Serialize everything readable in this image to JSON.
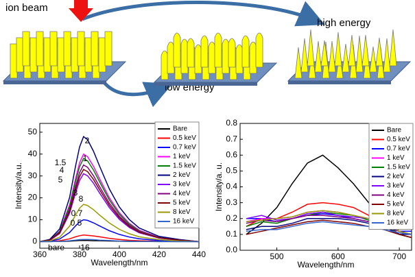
{
  "diagram": {
    "labels": [
      "ion beam",
      "high energy",
      "low energy"
    ]
  },
  "chart_data": [
    {
      "type": "line",
      "xlabel": "Wavelength/nm",
      "ylabel": "Intensity/a.u.",
      "xlim": [
        360,
        440
      ],
      "xticks": [
        360,
        380,
        400,
        420,
        440
      ],
      "ylim": [
        -3,
        54
      ],
      "yticks": [
        0,
        10,
        20,
        30,
        40,
        50
      ],
      "annotations": [
        "2",
        "1.5",
        "1",
        "4",
        "5",
        "3",
        "8",
        "0.7",
        "0.5",
        "bare",
        "16"
      ],
      "x": [
        360,
        365,
        370,
        375,
        378,
        380,
        382,
        384,
        387,
        390,
        395,
        400,
        405,
        410,
        420,
        430,
        440
      ],
      "series": [
        {
          "name": "Bare",
          "color": "#000000",
          "values": [
            0,
            0,
            0.1,
            0.2,
            0.4,
            0.5,
            0.5,
            0.5,
            0.4,
            0.4,
            0.3,
            0.2,
            0.1,
            0.1,
            0,
            0,
            0
          ]
        },
        {
          "name": "0.5 keV",
          "color": "#ff0000",
          "values": [
            0,
            0.1,
            0.4,
            1.3,
            2.2,
            2.7,
            3,
            2.9,
            2.6,
            2.2,
            1.5,
            1,
            0.6,
            0.4,
            0.2,
            0.1,
            0
          ]
        },
        {
          "name": "0.7 keV",
          "color": "#0000ff",
          "values": [
            0,
            0.2,
            1.2,
            4.2,
            7.2,
            9,
            10,
            9.7,
            8.6,
            7.2,
            5,
            3.3,
            2.1,
            1.3,
            0.5,
            0.2,
            0
          ]
        },
        {
          "name": "1 keV",
          "color": "#ff00ff",
          "values": [
            0,
            0.8,
            4.8,
            16.8,
            28.8,
            36,
            40,
            38.8,
            34.4,
            28.8,
            20,
            13.2,
            8.4,
            5.2,
            2,
            0.8,
            0
          ]
        },
        {
          "name": "1.5 keV",
          "color": "#008000",
          "values": [
            0,
            0.8,
            4.6,
            16,
            27.4,
            34.2,
            38,
            36.9,
            32.7,
            27.4,
            19,
            12.5,
            8,
            4.9,
            1.9,
            0.8,
            0
          ]
        },
        {
          "name": "2 keV",
          "color": "#000080",
          "values": [
            0,
            1,
            5.8,
            20.2,
            34.6,
            43.2,
            48,
            46.6,
            41.3,
            34.6,
            24,
            15.8,
            10.1,
            6.2,
            2.4,
            1,
            0
          ]
        },
        {
          "name": "3 keV",
          "color": "#8000ff",
          "values": [
            0,
            0.6,
            3.7,
            13,
            22.3,
            27.9,
            31,
            30.1,
            26.7,
            22.3,
            15.5,
            10.2,
            6.5,
            4,
            1.6,
            0.6,
            0
          ]
        },
        {
          "name": "4 keV",
          "color": "#800080",
          "values": [
            0,
            0.7,
            4.2,
            14.7,
            25.2,
            31.5,
            35,
            34,
            30.1,
            25.2,
            17.5,
            11.6,
            7.4,
            4.6,
            1.8,
            0.7,
            0
          ]
        },
        {
          "name": "5 keV",
          "color": "#800000",
          "values": [
            0,
            0.7,
            4,
            13.9,
            23.8,
            29.7,
            33,
            32,
            28.4,
            23.8,
            16.5,
            10.9,
            6.9,
            4.3,
            1.7,
            0.7,
            0
          ]
        },
        {
          "name": "8 keV",
          "color": "#999900",
          "values": [
            0,
            0.3,
            2,
            7.1,
            12.2,
            15.3,
            17,
            16.5,
            14.6,
            12.2,
            8.5,
            5.6,
            3.6,
            2.2,
            0.9,
            0.3,
            0
          ]
        },
        {
          "name": "16 keV",
          "color": "#3366cc",
          "values": [
            0,
            0,
            0.1,
            0.4,
            0.7,
            0.9,
            1,
            1,
            0.9,
            0.7,
            0.5,
            0.3,
            0.2,
            0.1,
            0.1,
            0,
            0
          ]
        }
      ]
    },
    {
      "type": "line",
      "xlabel": "Wavelength/nm",
      "ylabel": "Intensity/a. u.",
      "xlim": [
        440,
        720
      ],
      "xticks": [
        500,
        600,
        700
      ],
      "ylim": [
        0,
        0.8
      ],
      "yticks": [
        {
          "value": 0,
          "label": "0.0"
        },
        0.1,
        0.2,
        0.3,
        0.4,
        0.5,
        0.6,
        0.7,
        0.8
      ],
      "x": [
        450,
        475,
        500,
        525,
        550,
        575,
        600,
        625,
        650,
        675,
        700,
        720
      ],
      "series": [
        {
          "name": "Bare",
          "color": "#000000",
          "values": [
            0.1,
            0.17,
            0.27,
            0.42,
            0.55,
            0.6,
            0.52,
            0.42,
            0.3,
            0.2,
            0.12,
            0.1
          ]
        },
        {
          "name": "0.5 keV",
          "color": "#ff0000",
          "values": [
            0.15,
            0.2,
            0.2,
            0.24,
            0.29,
            0.3,
            0.29,
            0.27,
            0.22,
            0.18,
            0.1,
            0.08
          ]
        },
        {
          "name": "0.7 keV",
          "color": "#0000ff",
          "values": [
            0.2,
            0.2,
            0.18,
            0.2,
            0.22,
            0.23,
            0.22,
            0.2,
            0.18,
            0.15,
            0.12,
            0.12
          ]
        },
        {
          "name": "1 keV",
          "color": "#ff00ff",
          "values": [
            0.18,
            0.2,
            0.2,
            0.21,
            0.24,
            0.25,
            0.24,
            0.22,
            0.2,
            0.17,
            0.12,
            0.1
          ]
        },
        {
          "name": "1.5 keV",
          "color": "#008000",
          "values": [
            0.15,
            0.18,
            0.17,
            0.2,
            0.22,
            0.24,
            0.23,
            0.22,
            0.19,
            0.16,
            0.1,
            0.08
          ]
        },
        {
          "name": "2 keV",
          "color": "#000080",
          "values": [
            0.13,
            0.15,
            0.15,
            0.17,
            0.2,
            0.2,
            0.2,
            0.19,
            0.17,
            0.15,
            0.1,
            0.1
          ]
        },
        {
          "name": "3 keV",
          "color": "#8000ff",
          "values": [
            0.2,
            0.22,
            0.19,
            0.2,
            0.23,
            0.24,
            0.22,
            0.21,
            0.2,
            0.18,
            0.15,
            0.14
          ]
        },
        {
          "name": "4 keV",
          "color": "#800080",
          "values": [
            0.17,
            0.19,
            0.18,
            0.2,
            0.22,
            0.22,
            0.21,
            0.2,
            0.18,
            0.17,
            0.12,
            0.1
          ]
        },
        {
          "name": "5 keV",
          "color": "#800000",
          "values": [
            0.1,
            0.12,
            0.14,
            0.16,
            0.18,
            0.19,
            0.18,
            0.17,
            0.15,
            0.13,
            0.1,
            0.08
          ]
        },
        {
          "name": "8 keV",
          "color": "#999900",
          "values": [
            0.18,
            0.19,
            0.2,
            0.21,
            0.24,
            0.25,
            0.24,
            0.22,
            0.2,
            0.18,
            0.12,
            0.1
          ]
        },
        {
          "name": "16 keV",
          "color": "#3366cc",
          "values": [
            0.12,
            0.13,
            0.13,
            0.15,
            0.17,
            0.18,
            0.17,
            0.16,
            0.15,
            0.13,
            0.11,
            0.1
          ]
        }
      ]
    }
  ]
}
